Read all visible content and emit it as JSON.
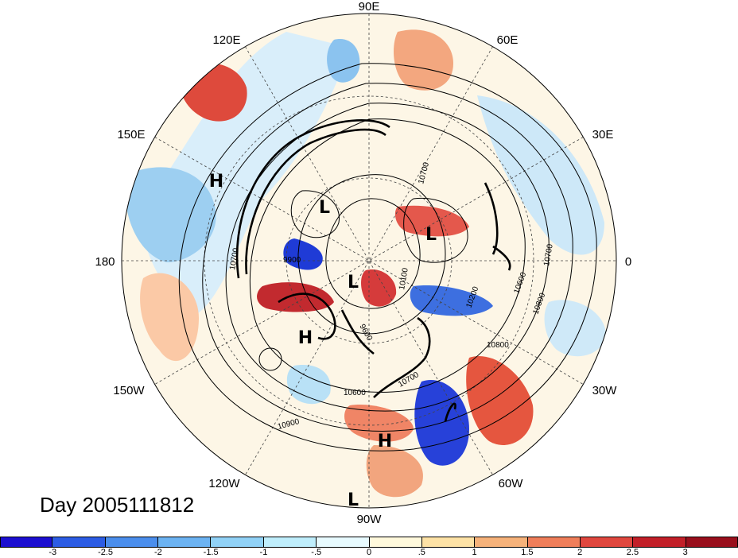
{
  "map": {
    "title": "Day 2005111812",
    "longitude_labels": [
      "90E",
      "60E",
      "30E",
      "0",
      "30W",
      "60W",
      "90W",
      "120W",
      "150W",
      "180",
      "150E",
      "120E"
    ],
    "pressure_centers": [
      {
        "label": "H",
        "region": "north-pacific"
      },
      {
        "label": "L",
        "region": "eastern-siberia"
      },
      {
        "label": "L",
        "region": "northern-europe"
      },
      {
        "label": "L",
        "region": "north-pole"
      },
      {
        "label": "H",
        "region": "western-north-america"
      },
      {
        "label": "H",
        "region": "caribbean"
      },
      {
        "label": "L",
        "region": "south-america"
      }
    ],
    "contour_labels": [
      "9900",
      "10600",
      "10700",
      "10800",
      "10900",
      "10100",
      "10200",
      "9600",
      "10700",
      "10700",
      "10700",
      "10600",
      "10800"
    ],
    "anomaly_colors": {
      "strong_negative": "#2233d8",
      "negative": "#66aaee",
      "weak_negative": "#c8ecf8",
      "weak_positive": "#fce9c0",
      "positive": "#f39a76",
      "strong_positive": "#d42a2a"
    }
  },
  "colorbar": {
    "tick_labels": [
      "-3",
      "-2.5",
      "-2",
      "-1.5",
      "-1",
      "-.5",
      "0",
      ".5",
      "1",
      "1.5",
      "2",
      "2.5",
      "3"
    ],
    "colors": [
      "#1c0fd1",
      "#2c5ce4",
      "#4b8eec",
      "#6cb3f2",
      "#91d2f7",
      "#bfeefc",
      "#e8fbff",
      "#fff9dc",
      "#fde2a6",
      "#f6b27a",
      "#ef7e5a",
      "#e0473e",
      "#c21f28",
      "#990f1c"
    ]
  }
}
